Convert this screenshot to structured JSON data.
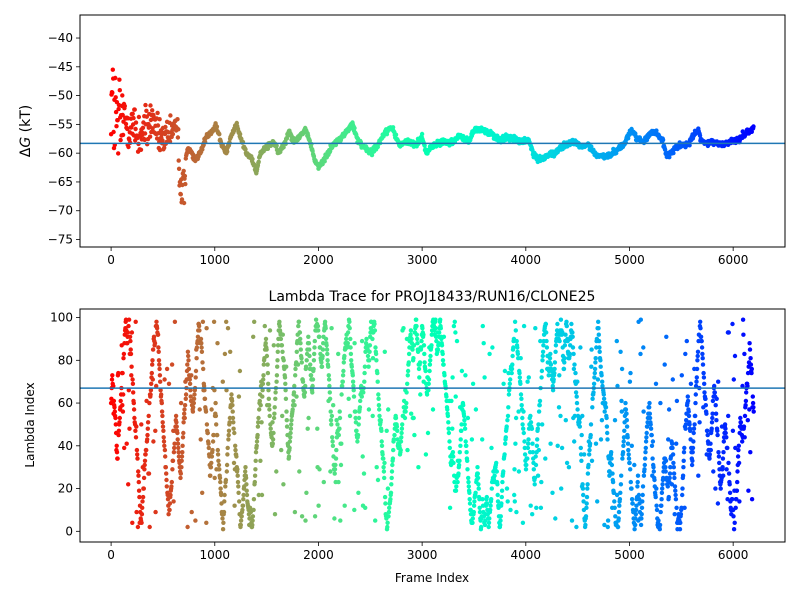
{
  "chart_data": [
    {
      "type": "scatter",
      "title": "",
      "xlabel": "",
      "ylabel": "ΔG (kT)",
      "ylabel_delta": "Δ",
      "ylabel_italic": "G",
      "ylabel_unit": " (kT)",
      "xlim": [
        -300,
        6500
      ],
      "ylim": [
        -76.3,
        -36.0
      ],
      "xticks": [
        0,
        1000,
        2000,
        3000,
        4000,
        5000,
        6000
      ],
      "xticklabels": [
        "0",
        "1000",
        "2000",
        "3000",
        "4000",
        "5000",
        "6000"
      ],
      "yticks": [
        -75,
        -70,
        -65,
        -60,
        -55,
        -50,
        -45,
        -40
      ],
      "yticklabels": [
        "−75",
        "−70",
        "−65",
        "−60",
        "−55",
        "−50",
        "−45",
        "−40"
      ],
      "hline": -58.3,
      "hline_color": "#1f77b4",
      "colormap": "rainbow",
      "color_by": "reverse frame index",
      "n_frames": 6200,
      "trace_control_points": [
        [
          0,
          -50
        ],
        [
          60,
          -56
        ],
        [
          120,
          -54
        ],
        [
          200,
          -55
        ],
        [
          260,
          -57
        ],
        [
          330,
          -56
        ],
        [
          400,
          -54
        ],
        [
          460,
          -57
        ],
        [
          530,
          -58
        ],
        [
          600,
          -56
        ],
        [
          640,
          -55
        ],
        [
          670,
          -63
        ],
        [
          700,
          -63
        ],
        [
          740,
          -59
        ],
        [
          800,
          -61
        ],
        [
          860,
          -60
        ],
        [
          920,
          -57
        ],
        [
          980,
          -56
        ],
        [
          1010,
          -55
        ],
        [
          1060,
          -58
        ],
        [
          1110,
          -60
        ],
        [
          1160,
          -57
        ],
        [
          1210,
          -55
        ],
        [
          1260,
          -58
        ],
        [
          1310,
          -60
        ],
        [
          1360,
          -61
        ],
        [
          1400,
          -63.5
        ],
        [
          1440,
          -60
        ],
        [
          1500,
          -59
        ],
        [
          1560,
          -58
        ],
        [
          1620,
          -60
        ],
        [
          1680,
          -58
        ],
        [
          1720,
          -56
        ],
        [
          1760,
          -58
        ],
        [
          1820,
          -57
        ],
        [
          1870,
          -56
        ],
        [
          1920,
          -58
        ],
        [
          1960,
          -61
        ],
        [
          2000,
          -62.5
        ],
        [
          2060,
          -61
        ],
        [
          2120,
          -59
        ],
        [
          2180,
          -58
        ],
        [
          2240,
          -57
        ],
        [
          2300,
          -55.5
        ],
        [
          2330,
          -55
        ],
        [
          2380,
          -58
        ],
        [
          2450,
          -59
        ],
        [
          2500,
          -59.8
        ],
        [
          2560,
          -59
        ],
        [
          2620,
          -57
        ],
        [
          2680,
          -55.5
        ],
        [
          2720,
          -56
        ],
        [
          2780,
          -58.5
        ],
        [
          2860,
          -58
        ],
        [
          2940,
          -58.5
        ],
        [
          3000,
          -57
        ],
        [
          3040,
          -60
        ],
        [
          3080,
          -59
        ],
        [
          3120,
          -58.5
        ],
        [
          3200,
          -58
        ],
        [
          3300,
          -58
        ],
        [
          3370,
          -57
        ],
        [
          3410,
          -57.5
        ],
        [
          3450,
          -58
        ],
        [
          3500,
          -56
        ],
        [
          3560,
          -55.8
        ],
        [
          3640,
          -56.5
        ],
        [
          3700,
          -57
        ],
        [
          3760,
          -58
        ],
        [
          3820,
          -57
        ],
        [
          3880,
          -57.5
        ],
        [
          3960,
          -58
        ],
        [
          4030,
          -57.8
        ],
        [
          4080,
          -60.5
        ],
        [
          4130,
          -61
        ],
        [
          4200,
          -60.5
        ],
        [
          4280,
          -60
        ],
        [
          4330,
          -59
        ],
        [
          4400,
          -58.5
        ],
        [
          4480,
          -58
        ],
        [
          4540,
          -59
        ],
        [
          4600,
          -58.5
        ],
        [
          4650,
          -59.8
        ],
        [
          4700,
          -60.5
        ],
        [
          4800,
          -60.5
        ],
        [
          4880,
          -59.5
        ],
        [
          4960,
          -58
        ],
        [
          5020,
          -56
        ],
        [
          5080,
          -57.5
        ],
        [
          5140,
          -58
        ],
        [
          5200,
          -56.5
        ],
        [
          5260,
          -56.5
        ],
        [
          5320,
          -58
        ],
        [
          5360,
          -60.5
        ],
        [
          5400,
          -60
        ],
        [
          5440,
          -59
        ],
        [
          5500,
          -58.5
        ],
        [
          5560,
          -58.5
        ],
        [
          5620,
          -57
        ],
        [
          5660,
          -56
        ],
        [
          5700,
          -58
        ],
        [
          5760,
          -58.3
        ],
        [
          5830,
          -58
        ],
        [
          5900,
          -58.5
        ],
        [
          5980,
          -58
        ],
        [
          6060,
          -57.5
        ],
        [
          6120,
          -56.5
        ],
        [
          6200,
          -55.8
        ]
      ]
    },
    {
      "type": "scatter",
      "title": "Lambda Trace for PROJ18433/RUN16/CLONE25",
      "xlabel": "Frame Index",
      "ylabel": "Lambda Index",
      "xlim": [
        -300,
        6500
      ],
      "ylim": [
        -5,
        104
      ],
      "xticks": [
        0,
        1000,
        2000,
        3000,
        4000,
        5000,
        6000
      ],
      "xticklabels": [
        "0",
        "1000",
        "2000",
        "3000",
        "4000",
        "5000",
        "6000"
      ],
      "yticks": [
        0,
        20,
        40,
        60,
        80,
        100
      ],
      "yticklabels": [
        "0",
        "20",
        "40",
        "60",
        "80",
        "100"
      ],
      "hline": 67,
      "hline_color": "#1f77b4",
      "colormap": "rainbow",
      "color_by": "reverse frame index",
      "n_frames": 6200,
      "lambda_min": 1,
      "lambda_max": 99
    }
  ]
}
